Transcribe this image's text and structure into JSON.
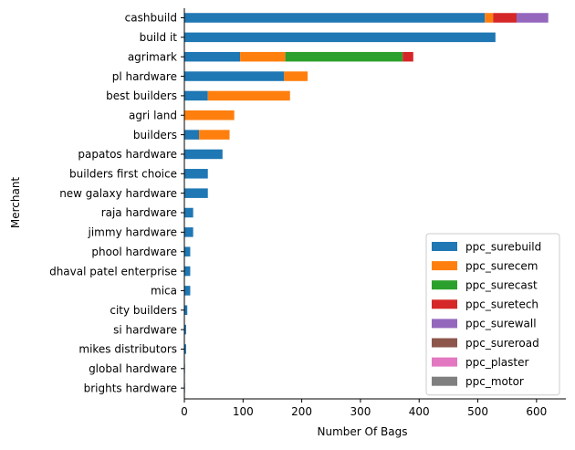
{
  "chart_data": {
    "type": "bar",
    "orientation": "horizontal",
    "stacked": true,
    "title": "",
    "xlabel": "Number Of Bags",
    "ylabel": "Merchant",
    "xlim": [
      0,
      650
    ],
    "xticks": [
      0,
      100,
      200,
      300,
      400,
      500,
      600
    ],
    "grid": false,
    "legend_position": "bottom-right",
    "categories": [
      "cashbuild",
      "build it",
      "agrimark",
      "pl hardware",
      "best builders",
      "agri land",
      "builders",
      "papatos hardware",
      "builders first choice",
      "new galaxy hardware",
      "raja hardware",
      "jimmy hardware",
      "phool hardware",
      "dhaval patel enterprise",
      "mica",
      "city builders",
      "si hardware",
      "mikes distributors",
      "global hardware",
      "brights hardware"
    ],
    "series": [
      {
        "name": "ppc_surebuild",
        "color": "#1f77b4",
        "values": [
          512,
          530,
          95,
          170,
          40,
          0,
          25,
          65,
          40,
          40,
          15,
          15,
          10,
          10,
          10,
          5,
          3,
          3,
          1,
          1
        ]
      },
      {
        "name": "ppc_surecem",
        "color": "#ff7f0e",
        "values": [
          14,
          0,
          77,
          40,
          140,
          85,
          52,
          0,
          0,
          0,
          0,
          0,
          0,
          0,
          0,
          0,
          0,
          0,
          0,
          0
        ]
      },
      {
        "name": "ppc_surecast",
        "color": "#2ca02c",
        "values": [
          0,
          0,
          200,
          0,
          0,
          0,
          0,
          0,
          0,
          0,
          0,
          0,
          0,
          0,
          0,
          0,
          0,
          0,
          0,
          0
        ]
      },
      {
        "name": "ppc_suretech",
        "color": "#d62728",
        "values": [
          40,
          0,
          18,
          0,
          0,
          0,
          0,
          0,
          0,
          0,
          0,
          0,
          0,
          0,
          0,
          0,
          0,
          0,
          0,
          0
        ]
      },
      {
        "name": "ppc_surewall",
        "color": "#9467bd",
        "values": [
          54,
          0,
          0,
          0,
          0,
          0,
          0,
          0,
          0,
          0,
          0,
          0,
          0,
          0,
          0,
          0,
          0,
          0,
          0,
          0
        ]
      },
      {
        "name": "ppc_sureroad",
        "color": "#8c564b",
        "values": [
          0,
          0,
          0,
          0,
          0,
          0,
          0,
          0,
          0,
          0,
          0,
          0,
          0,
          0,
          0,
          0,
          0,
          0,
          0,
          0
        ]
      },
      {
        "name": "ppc_plaster",
        "color": "#e377c2",
        "values": [
          0,
          0,
          0,
          0,
          0,
          0,
          0,
          0,
          0,
          0,
          0,
          0,
          0,
          0,
          0,
          0,
          0,
          0,
          0,
          0
        ]
      },
      {
        "name": "ppc_motor",
        "color": "#7f7f7f",
        "values": [
          0,
          0,
          0,
          0,
          0,
          0,
          0,
          0,
          0,
          0,
          0,
          0,
          0,
          0,
          0,
          0,
          0,
          0,
          0,
          0
        ]
      }
    ]
  }
}
